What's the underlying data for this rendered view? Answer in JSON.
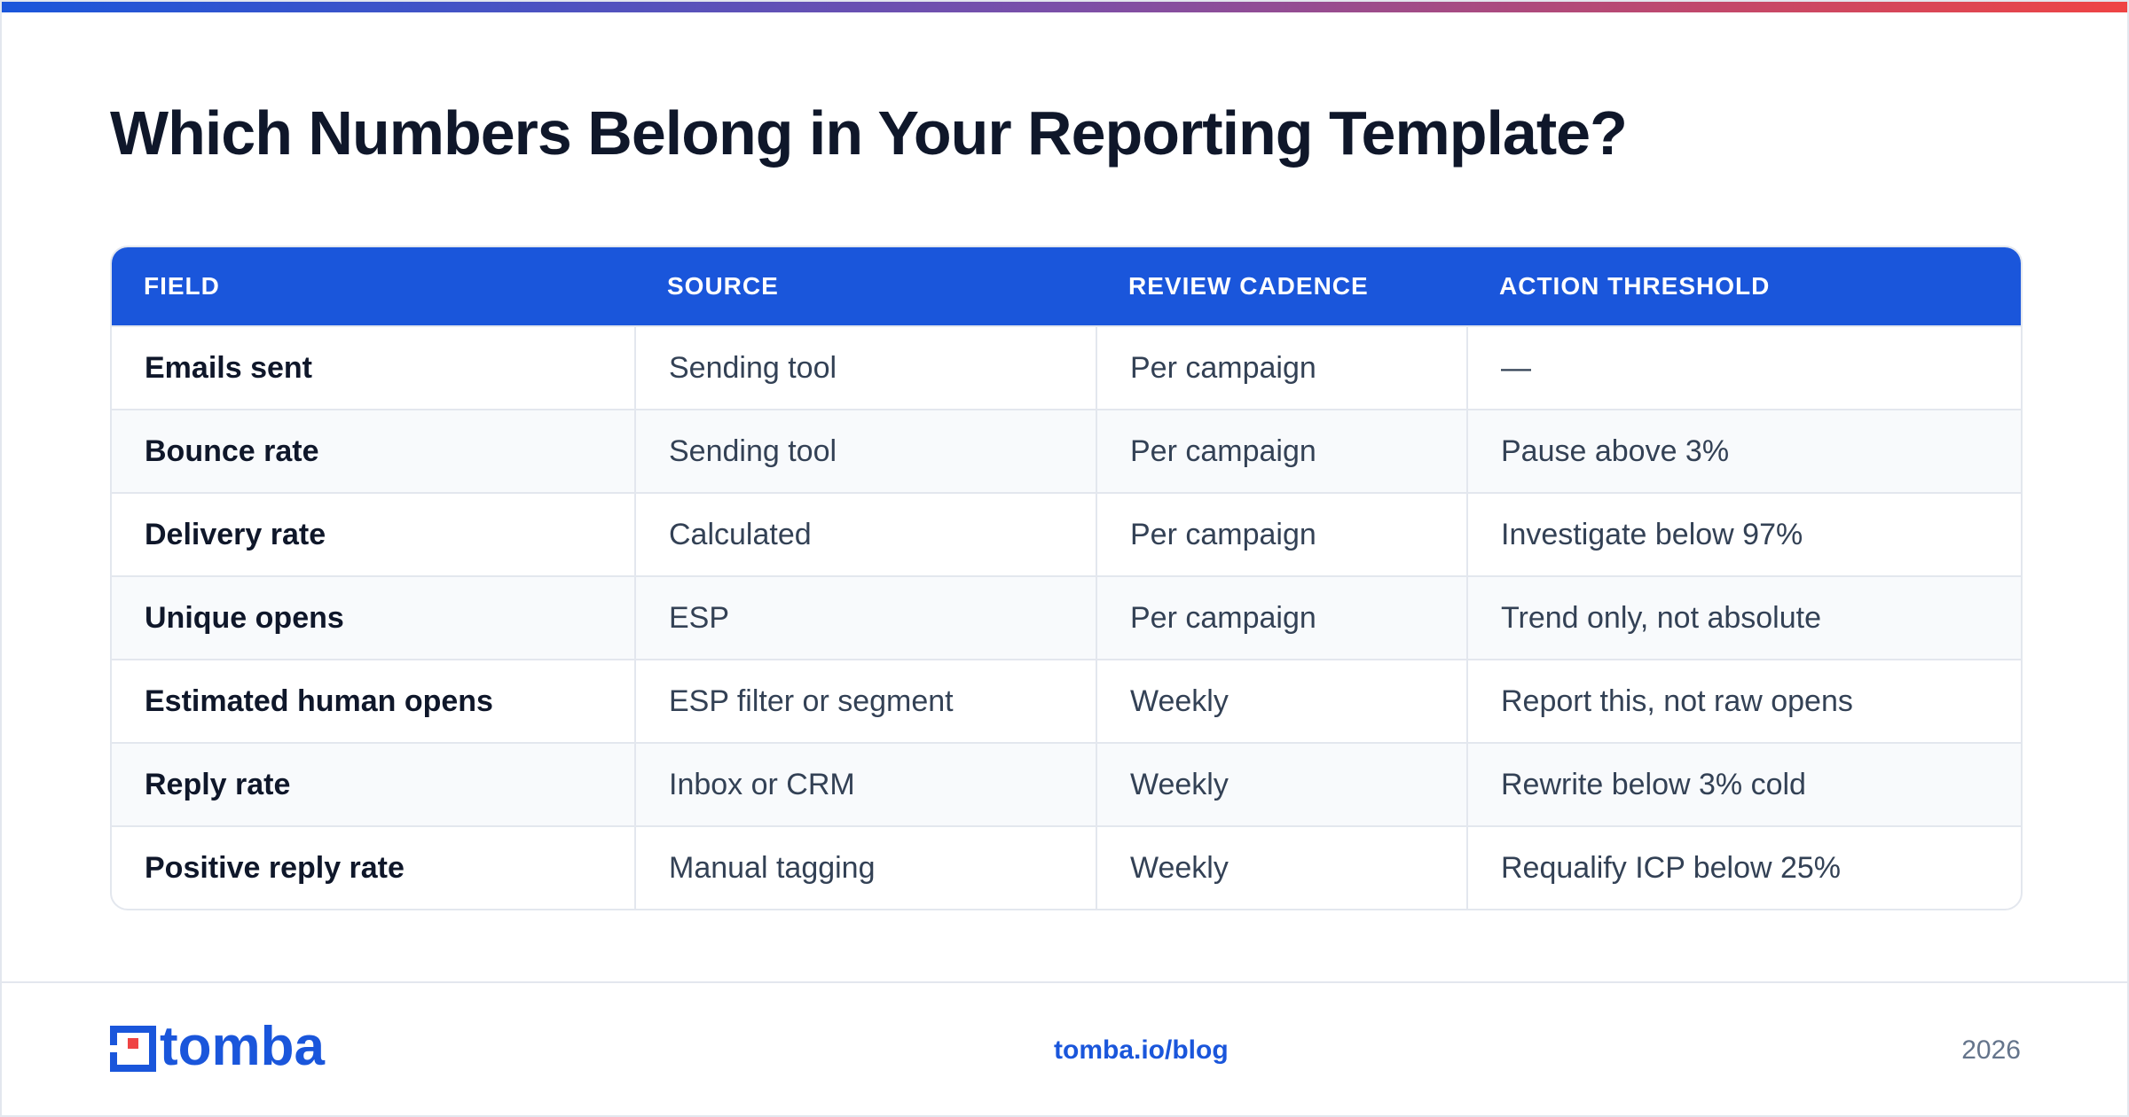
{
  "title": "Which Numbers Belong in Your Reporting Template?",
  "table": {
    "headers": [
      "FIELD",
      "SOURCE",
      "REVIEW CADENCE",
      "ACTION THRESHOLD"
    ],
    "rows": [
      [
        "Emails sent",
        "Sending tool",
        "Per campaign",
        "—"
      ],
      [
        "Bounce rate",
        "Sending tool",
        "Per campaign",
        "Pause above 3%"
      ],
      [
        "Delivery rate",
        "Calculated",
        "Per campaign",
        "Investigate below 97%"
      ],
      [
        "Unique opens",
        "ESP",
        "Per campaign",
        "Trend only, not absolute"
      ],
      [
        "Estimated human opens",
        "ESP filter or segment",
        "Weekly",
        "Report this, not raw opens"
      ],
      [
        "Reply rate",
        "Inbox or CRM",
        "Weekly",
        "Rewrite below 3% cold"
      ],
      [
        "Positive reply rate",
        "Manual tagging",
        "Weekly",
        "Requalify ICP below 25%"
      ]
    ]
  },
  "footer": {
    "logo_text": "tomba",
    "site": "tomba.io/blog",
    "year": "2026"
  },
  "colors": {
    "accent": "#1a56db",
    "logo_red": "#ef4444",
    "gradient_end": "#ef4444"
  }
}
